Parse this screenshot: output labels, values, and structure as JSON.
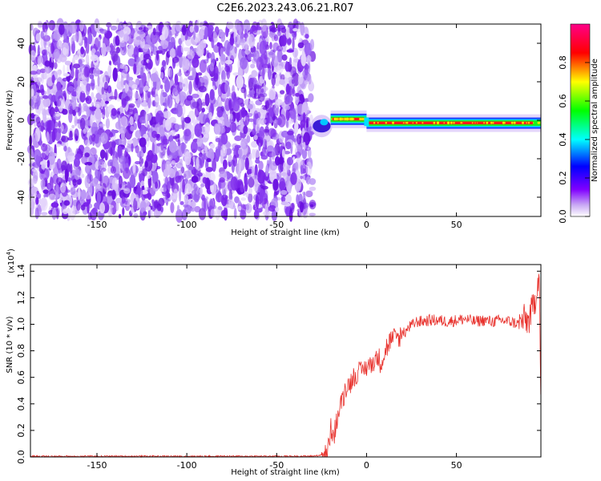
{
  "figure": {
    "title": "C2E6.2023.243.06.21.R07"
  },
  "chart_data": [
    {
      "type": "heatmap",
      "xlabel": "Height of straight line (km)",
      "ylabel": "Frequency (Hz)",
      "xlim": [
        -187,
        97
      ],
      "ylim": [
        -50,
        50
      ],
      "xticks": [
        -150,
        -100,
        -50,
        0,
        50
      ],
      "yticks": [
        -40,
        -20,
        0,
        20,
        40
      ],
      "colorbar": {
        "label": "Normalized spectral amplitude",
        "range": [
          0,
          1
        ],
        "ticks": [
          "0.0",
          "0.2",
          "0.4",
          "0.6",
          "0.8"
        ],
        "colors": [
          "#ffffff",
          "#8000ff",
          "#0000ff",
          "#00ffff",
          "#00ff00",
          "#ffff00",
          "#ff0000",
          "#ff00aa"
        ]
      },
      "regions": [
        {
          "name": "noise",
          "x_range": [
            -187,
            -30
          ],
          "freq_range": [
            -50,
            50
          ],
          "amplitude_range": [
            0.0,
            0.15
          ]
        },
        {
          "name": "signal-ramp",
          "x_range": [
            -30,
            -20
          ],
          "freq_center": [
            -5,
            0
          ],
          "amplitude_peak": 0.4
        },
        {
          "name": "signal-core",
          "x_range": [
            -20,
            0
          ],
          "freq_center": 0.5,
          "amplitude_peak": 0.95
        },
        {
          "name": "signal-core",
          "x_range": [
            0,
            97
          ],
          "freq_center": -1.5,
          "amplitude_peak": 0.95
        }
      ]
    },
    {
      "type": "line",
      "xlabel": "Height of straight line (km)",
      "ylabel": "SNR (10 * v/v)",
      "yscale_label": "(x10",
      "yscale_exp": "4",
      "yscale_close": ")",
      "xlim": [
        -187,
        97
      ],
      "ylim": [
        0,
        1.45
      ],
      "xticks": [
        -150,
        -100,
        -50,
        0,
        50
      ],
      "yticks": [
        "0.0",
        "0.2",
        "0.4",
        "0.6",
        "0.8",
        "1.0",
        "1.2",
        "1.4"
      ],
      "color": "#e8322d",
      "series": [
        {
          "x": [
            -187,
            -150,
            -100,
            -50,
            -30,
            -22,
            -20,
            -18,
            -16,
            -14,
            -12,
            -10,
            -8,
            -6,
            -4,
            -2,
            0,
            2,
            4,
            6,
            8,
            10,
            12,
            14,
            16,
            18,
            20,
            22,
            24,
            26,
            28,
            30,
            35,
            40,
            45,
            50,
            55,
            60,
            65,
            70,
            75,
            80,
            85,
            88,
            90,
            92,
            94,
            95,
            96,
            97
          ],
          "values": [
            0.005,
            0.005,
            0.005,
            0.005,
            0.006,
            0.02,
            0.2,
            0.18,
            0.3,
            0.42,
            0.5,
            0.55,
            0.58,
            0.62,
            0.63,
            0.66,
            0.68,
            0.7,
            0.72,
            0.75,
            0.72,
            0.78,
            0.85,
            0.88,
            0.9,
            0.9,
            0.92,
            0.95,
            0.98,
            1.0,
            1.02,
            1.02,
            1.03,
            1.03,
            1.02,
            1.03,
            1.04,
            1.02,
            1.03,
            1.02,
            1.03,
            1.02,
            1.0,
            1.04,
            1.02,
            1.1,
            1.2,
            1.3,
            1.42,
            0.4
          ]
        }
      ]
    }
  ]
}
